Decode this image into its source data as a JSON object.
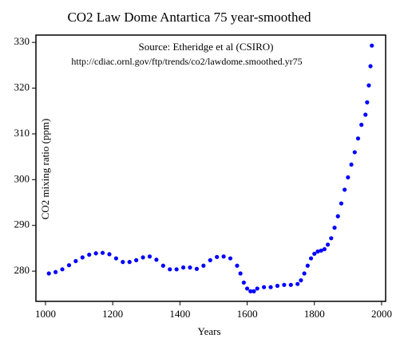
{
  "chart_data": {
    "type": "scatter",
    "title": "CO2 Law Dome Antartica 75 year-smoothed",
    "annotations": [
      "Source: Etheridge et al (CSIRO)",
      "http://cdiac.ornl.gov/ftp/trends/co2/lawdome.smoothed.yr75"
    ],
    "x_label": "Years",
    "y_label": "CO2 mixing ratio (ppm)",
    "color": "#0000ff",
    "x": [
      1010,
      1030,
      1050,
      1070,
      1090,
      1110,
      1130,
      1150,
      1170,
      1190,
      1210,
      1230,
      1250,
      1270,
      1290,
      1310,
      1330,
      1350,
      1370,
      1390,
      1410,
      1430,
      1450,
      1470,
      1490,
      1510,
      1530,
      1550,
      1570,
      1580,
      1590,
      1600,
      1610,
      1620,
      1630,
      1650,
      1670,
      1690,
      1710,
      1730,
      1750,
      1760,
      1770,
      1780,
      1790,
      1800,
      1810,
      1820,
      1830,
      1840,
      1850,
      1860,
      1870,
      1880,
      1890,
      1900,
      1910,
      1920,
      1930,
      1940,
      1952,
      1957,
      1962,
      1967,
      1971
    ],
    "values": [
      279.5,
      279.8,
      280.4,
      281.3,
      282.2,
      283.0,
      283.6,
      283.9,
      284.0,
      283.7,
      282.8,
      282.0,
      282.0,
      282.4,
      283.0,
      283.2,
      282.5,
      281.2,
      280.4,
      280.4,
      280.8,
      280.8,
      280.5,
      281.2,
      282.4,
      283.1,
      283.2,
      282.8,
      281.2,
      279.5,
      277.5,
      276.2,
      275.6,
      275.6,
      276.2,
      276.5,
      276.5,
      276.8,
      277.0,
      277.0,
      277.2,
      278.0,
      279.5,
      281.2,
      282.8,
      283.8,
      284.3,
      284.5,
      284.8,
      285.8,
      287.2,
      289.5,
      292.0,
      294.8,
      297.8,
      300.5,
      303.3,
      306.0,
      309.0,
      312.0,
      314.2,
      316.9,
      320.6,
      324.8,
      329.3
    ],
    "xlim": [
      971.5,
      2012
    ],
    "xticks": [
      1000,
      1200,
      1400,
      1600,
      1800,
      2000
    ],
    "ylim": [
      273.4,
      331.6
    ],
    "yticks": [
      280,
      290,
      300,
      310,
      320,
      330
    ]
  }
}
